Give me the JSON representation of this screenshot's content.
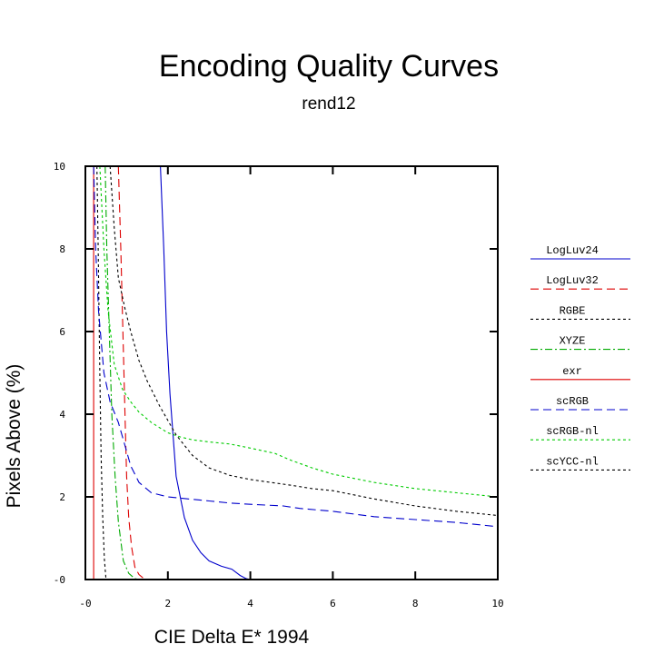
{
  "chart_data": {
    "type": "line",
    "title": "Encoding Quality Curves",
    "subtitle": "rend12",
    "xlabel": "CIE Delta E* 1994",
    "ylabel": "Pixels Above (%)",
    "xlim": [
      0,
      10
    ],
    "ylim": [
      0,
      10
    ],
    "x_ticks": [
      {
        "value": 0,
        "label": "-0"
      },
      {
        "value": 2,
        "label": "2"
      },
      {
        "value": 4,
        "label": "4"
      },
      {
        "value": 6,
        "label": "6"
      },
      {
        "value": 8,
        "label": "8"
      },
      {
        "value": 10,
        "label": "10"
      }
    ],
    "y_ticks": [
      {
        "value": 0,
        "label": "-0"
      },
      {
        "value": 2,
        "label": "2"
      },
      {
        "value": 4,
        "label": "4"
      },
      {
        "value": 6,
        "label": "6"
      },
      {
        "value": 8,
        "label": "8"
      },
      {
        "value": 10,
        "label": "10"
      }
    ],
    "grid": false,
    "legend_position": "right",
    "series": [
      {
        "name": "LogLuv24",
        "color": "#0000cc",
        "dash": "solid",
        "points": [
          [
            1.82,
            10
          ],
          [
            1.9,
            8.0
          ],
          [
            1.97,
            6.0
          ],
          [
            2.05,
            4.5
          ],
          [
            2.2,
            2.5
          ],
          [
            2.4,
            1.5
          ],
          [
            2.6,
            0.95
          ],
          [
            2.8,
            0.65
          ],
          [
            3.0,
            0.45
          ],
          [
            3.3,
            0.32
          ],
          [
            3.55,
            0.25
          ],
          [
            3.75,
            0.1
          ],
          [
            3.9,
            0.02
          ],
          [
            4.0,
            0
          ],
          [
            10,
            0
          ]
        ]
      },
      {
        "name": "LogLuv32",
        "color": "#dd0000",
        "dash": "long",
        "points": [
          [
            0.8,
            10
          ],
          [
            0.86,
            8.0
          ],
          [
            0.91,
            6.0
          ],
          [
            0.96,
            4.0
          ],
          [
            1.0,
            2.5
          ],
          [
            1.05,
            1.5
          ],
          [
            1.12,
            0.8
          ],
          [
            1.2,
            0.3
          ],
          [
            1.3,
            0.12
          ],
          [
            1.42,
            0.02
          ],
          [
            1.5,
            0
          ],
          [
            10,
            0
          ]
        ]
      },
      {
        "name": "RGBE",
        "color": "#000000",
        "dash": "short",
        "points": [
          [
            0.28,
            10
          ],
          [
            0.31,
            8.0
          ],
          [
            0.35,
            5.0
          ],
          [
            0.38,
            3.0
          ],
          [
            0.42,
            1.5
          ],
          [
            0.46,
            0.5
          ],
          [
            0.5,
            0
          ],
          [
            10,
            0
          ]
        ]
      },
      {
        "name": "XYZE",
        "color": "#00aa00",
        "dash": "dashdot",
        "points": [
          [
            0.48,
            10
          ],
          [
            0.52,
            8.0
          ],
          [
            0.58,
            6.0
          ],
          [
            0.64,
            4.0
          ],
          [
            0.72,
            2.5
          ],
          [
            0.8,
            1.4
          ],
          [
            0.92,
            0.45
          ],
          [
            1.05,
            0.15
          ],
          [
            1.2,
            0.02
          ],
          [
            1.3,
            0
          ],
          [
            10,
            0
          ]
        ]
      },
      {
        "name": "exr",
        "color": "#dd0000",
        "dash": "solid",
        "points": [
          [
            0.2,
            10
          ],
          [
            0.2,
            0
          ],
          [
            10,
            0
          ]
        ]
      },
      {
        "name": "scRGB",
        "color": "#0000cc",
        "dash": "long",
        "points": [
          [
            0.2,
            10
          ],
          [
            0.25,
            8.0
          ],
          [
            0.32,
            6.5
          ],
          [
            0.45,
            5.0
          ],
          [
            0.6,
            4.3
          ],
          [
            0.8,
            3.8
          ],
          [
            1.0,
            3.1
          ],
          [
            1.1,
            2.75
          ],
          [
            1.3,
            2.35
          ],
          [
            1.6,
            2.1
          ],
          [
            2.0,
            2.0
          ],
          [
            2.5,
            1.95
          ],
          [
            3.0,
            1.9
          ],
          [
            3.5,
            1.85
          ],
          [
            4.0,
            1.82
          ],
          [
            4.8,
            1.78
          ],
          [
            5.2,
            1.72
          ],
          [
            6.0,
            1.65
          ],
          [
            7.0,
            1.52
          ],
          [
            8.0,
            1.45
          ],
          [
            9.0,
            1.38
          ],
          [
            10.0,
            1.28
          ]
        ]
      },
      {
        "name": "scRGB-nl",
        "color": "#00cc00",
        "dash": "short",
        "points": [
          [
            0.35,
            10
          ],
          [
            0.45,
            8.0
          ],
          [
            0.55,
            6.5
          ],
          [
            0.7,
            5.2
          ],
          [
            0.9,
            4.6
          ],
          [
            1.1,
            4.3
          ],
          [
            1.3,
            4.05
          ],
          [
            1.6,
            3.8
          ],
          [
            2.0,
            3.55
          ],
          [
            2.3,
            3.45
          ],
          [
            2.6,
            3.38
          ],
          [
            3.0,
            3.33
          ],
          [
            3.5,
            3.28
          ],
          [
            4.0,
            3.18
          ],
          [
            4.6,
            3.05
          ],
          [
            5.0,
            2.88
          ],
          [
            5.5,
            2.7
          ],
          [
            6.0,
            2.55
          ],
          [
            7.0,
            2.35
          ],
          [
            8.0,
            2.2
          ],
          [
            9.0,
            2.1
          ],
          [
            10.0,
            2.0
          ]
        ]
      },
      {
        "name": "scYCC-nl",
        "color": "#000000",
        "dash": "short",
        "points": [
          [
            0.6,
            10
          ],
          [
            0.7,
            8.5
          ],
          [
            0.8,
            7.3
          ],
          [
            0.95,
            6.6
          ],
          [
            1.1,
            6.0
          ],
          [
            1.3,
            5.3
          ],
          [
            1.5,
            4.8
          ],
          [
            1.8,
            4.2
          ],
          [
            2.2,
            3.5
          ],
          [
            2.6,
            3.0
          ],
          [
            3.0,
            2.7
          ],
          [
            3.5,
            2.52
          ],
          [
            4.0,
            2.42
          ],
          [
            4.5,
            2.35
          ],
          [
            5.0,
            2.28
          ],
          [
            5.5,
            2.2
          ],
          [
            6.0,
            2.15
          ],
          [
            6.5,
            2.05
          ],
          [
            7.0,
            1.95
          ],
          [
            8.0,
            1.78
          ],
          [
            9.0,
            1.65
          ],
          [
            10.0,
            1.55
          ]
        ]
      }
    ]
  }
}
